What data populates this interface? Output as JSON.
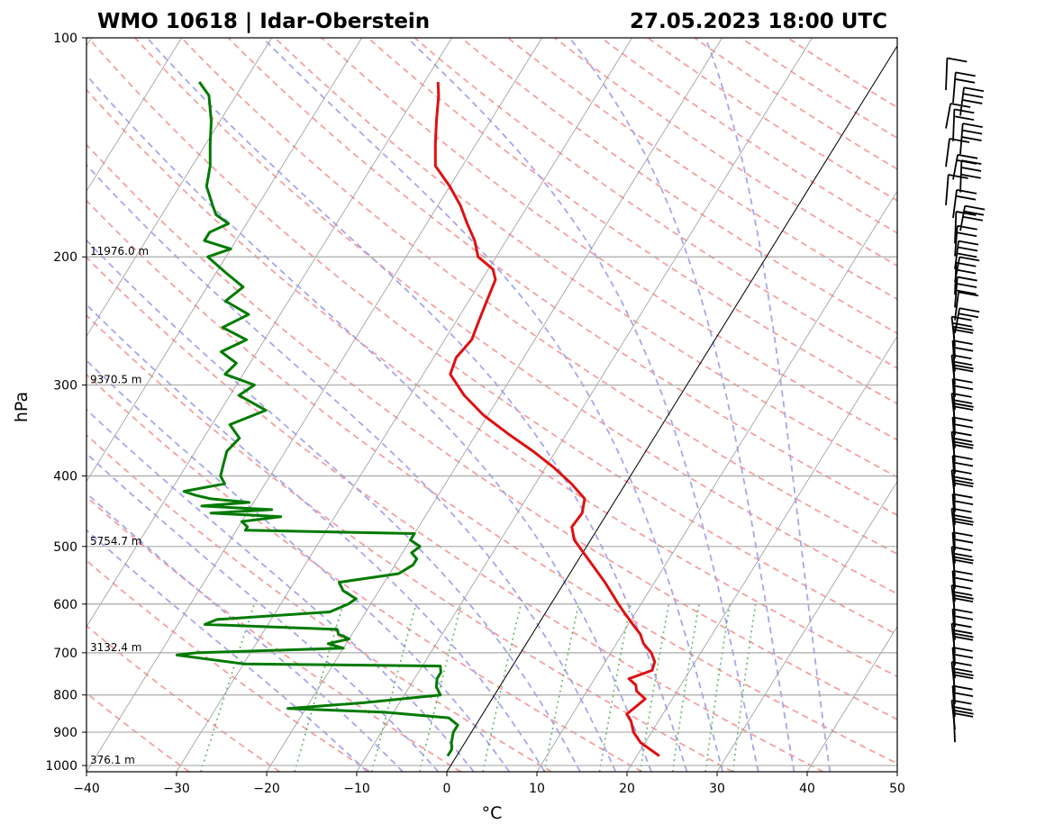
{
  "chart_data": {
    "type": "skew-t",
    "title_left": "WMO 10618 | Idar-Oberstein",
    "title_right": "27.05.2023 18:00 UTC",
    "xlabel": "°C",
    "ylabel": "hPa",
    "xlim": [
      -40,
      50
    ],
    "ylim": [
      1020,
      100
    ],
    "y_scale": "log",
    "x_ticks": [
      "−40",
      "−30",
      "−20",
      "−10",
      "0",
      "10",
      "20",
      "30",
      "40",
      "50"
    ],
    "y_ticks": [
      "100",
      "200",
      "300",
      "400",
      "500",
      "600",
      "700",
      "800",
      "900",
      "1000"
    ],
    "height_labels": [
      {
        "p": 200,
        "text": "11976.0 m"
      },
      {
        "p": 300,
        "text": "9370.5 m"
      },
      {
        "p": 500,
        "text": "5754.7 m"
      },
      {
        "p": 700,
        "text": "3132.4 m"
      },
      {
        "p": 1000,
        "text": "376.1 m"
      }
    ],
    "temperature": {
      "color": "#dd1111",
      "p": [
        970,
        930,
        900,
        870,
        850,
        830,
        810,
        790,
        775,
        760,
        740,
        720,
        700,
        680,
        660,
        640,
        620,
        600,
        560,
        520,
        490,
        470,
        450,
        430,
        410,
        390,
        370,
        350,
        330,
        310,
        290,
        275,
        260,
        245,
        230,
        215,
        208,
        200,
        190,
        180,
        170,
        160,
        150,
        140,
        130,
        120,
        115
      ],
      "t": [
        22.5,
        19.5,
        18.0,
        17.0,
        16.0,
        16.5,
        17.0,
        15.5,
        15.0,
        13.8,
        15.8,
        15.5,
        14.5,
        13.0,
        12.0,
        10.5,
        9.0,
        7.5,
        4.5,
        1.0,
        -1.8,
        -3.0,
        -2.8,
        -3.5,
        -6.0,
        -9.0,
        -12.5,
        -16.5,
        -20.5,
        -24.0,
        -27.0,
        -27.5,
        -27.0,
        -27.5,
        -28.0,
        -28.5,
        -29.5,
        -32.0,
        -33.5,
        -35.5,
        -37.5,
        -40.0,
        -43.0,
        -44.5,
        -46.0,
        -47.5,
        -48.5
      ]
    },
    "dewpoint": {
      "color": "#007a00",
      "p": [
        970,
        950,
        930,
        900,
        880,
        860,
        845,
        835,
        820,
        800,
        780,
        760,
        745,
        730,
        725,
        715,
        705,
        700,
        690,
        680,
        670,
        660,
        650,
        640,
        630,
        615,
        600,
        590,
        575,
        560,
        545,
        530,
        520,
        510,
        500,
        490,
        480,
        475,
        470,
        462,
        455,
        450,
        445,
        440,
        435,
        430,
        425,
        420,
        410,
        400,
        385,
        370,
        355,
        340,
        325,
        310,
        300,
        290,
        280,
        270,
        260,
        250,
        240,
        230,
        220,
        210,
        200,
        195,
        190,
        185,
        180,
        175,
        170,
        160,
        150,
        140,
        130,
        120,
        115
      ],
      "t": [
        -1.0,
        -1.0,
        -1.5,
        -2.0,
        -2.0,
        -3.5,
        -11.0,
        -22.0,
        -14.0,
        -6.0,
        -7.0,
        -7.5,
        -7.5,
        -8.0,
        -30.0,
        -34.0,
        -38.0,
        -36.0,
        -20.0,
        -22.0,
        -20.0,
        -21.5,
        -22.0,
        -37.0,
        -36.0,
        -24.0,
        -22.5,
        -22.0,
        -24.0,
        -25.0,
        -19.0,
        -18.0,
        -18.0,
        -19.0,
        -18.5,
        -20.0,
        -20.0,
        -39.0,
        -39.0,
        -40.0,
        -36.0,
        -44.0,
        -37.5,
        -45.5,
        -40.5,
        -45.0,
        -47.0,
        -48.5,
        -44.5,
        -45.5,
        -46.0,
        -46.5,
        -46.0,
        -48.0,
        -45.0,
        -49.0,
        -48.0,
        -52.0,
        -51.5,
        -54.0,
        -52.0,
        -55.5,
        -53.5,
        -57.0,
        -56.0,
        -59.0,
        -62.0,
        -60.0,
        -63.5,
        -63.5,
        -62.0,
        -64.0,
        -65.0,
        -67.0,
        -68.0,
        -69.5,
        -71.0,
        -73.0,
        -75.0
      ]
    },
    "isotherm_0": 0,
    "grid": true
  }
}
